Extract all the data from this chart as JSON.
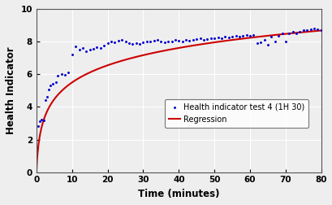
{
  "title": "",
  "xlabel": "Time (minutes)",
  "ylabel": "Health Indicator",
  "xlim": [
    0,
    80
  ],
  "ylim": [
    0,
    10
  ],
  "xticks": [
    0,
    10,
    20,
    30,
    40,
    50,
    60,
    70,
    80
  ],
  "yticks": [
    0,
    2,
    4,
    6,
    8,
    10
  ],
  "scatter_color": "#0000cc",
  "line_color": "#cc0000",
  "legend_labels": [
    "Health indicator test 4 (1H 30)",
    "Regression"
  ],
  "reg_a": 1.55,
  "reg_b": 1.88,
  "reg_c": 0.3,
  "background_color": "#eeeeee",
  "grid_color": "#ffffff",
  "scatter_points": [
    [
      0.5,
      2.8
    ],
    [
      1.0,
      3.1
    ],
    [
      1.5,
      3.2
    ],
    [
      2.0,
      3.15
    ],
    [
      2.5,
      4.4
    ],
    [
      3.0,
      4.6
    ],
    [
      3.5,
      5.05
    ],
    [
      4.0,
      5.3
    ],
    [
      4.5,
      5.4
    ],
    [
      5.5,
      5.5
    ],
    [
      6.0,
      5.9
    ],
    [
      7.0,
      6.0
    ],
    [
      8.0,
      5.95
    ],
    [
      9.0,
      6.1
    ],
    [
      10.0,
      7.2
    ],
    [
      11.0,
      7.7
    ],
    [
      12.0,
      7.5
    ],
    [
      13.0,
      7.6
    ],
    [
      14.0,
      7.4
    ],
    [
      15.0,
      7.5
    ],
    [
      16.0,
      7.55
    ],
    [
      17.0,
      7.65
    ],
    [
      18.0,
      7.6
    ],
    [
      19.0,
      7.75
    ],
    [
      20.0,
      7.9
    ],
    [
      21.0,
      8.0
    ],
    [
      22.0,
      7.95
    ],
    [
      23.0,
      8.05
    ],
    [
      24.0,
      8.1
    ],
    [
      25.0,
      8.0
    ],
    [
      26.0,
      7.9
    ],
    [
      27.0,
      7.85
    ],
    [
      28.0,
      7.9
    ],
    [
      29.0,
      7.85
    ],
    [
      30.0,
      7.95
    ],
    [
      31.0,
      8.0
    ],
    [
      32.0,
      8.0
    ],
    [
      33.0,
      8.05
    ],
    [
      34.0,
      8.1
    ],
    [
      35.0,
      8.0
    ],
    [
      36.0,
      7.95
    ],
    [
      37.0,
      8.0
    ],
    [
      38.0,
      8.0
    ],
    [
      39.0,
      8.1
    ],
    [
      40.0,
      8.05
    ],
    [
      41.0,
      8.0
    ],
    [
      42.0,
      8.1
    ],
    [
      43.0,
      8.05
    ],
    [
      44.0,
      8.1
    ],
    [
      45.0,
      8.15
    ],
    [
      46.0,
      8.2
    ],
    [
      47.0,
      8.1
    ],
    [
      48.0,
      8.15
    ],
    [
      49.0,
      8.2
    ],
    [
      50.0,
      8.2
    ],
    [
      51.0,
      8.25
    ],
    [
      52.0,
      8.2
    ],
    [
      53.0,
      8.3
    ],
    [
      54.0,
      8.25
    ],
    [
      55.0,
      8.3
    ],
    [
      56.0,
      8.35
    ],
    [
      57.0,
      8.3
    ],
    [
      58.0,
      8.35
    ],
    [
      59.0,
      8.4
    ],
    [
      60.0,
      8.35
    ],
    [
      61.0,
      8.4
    ],
    [
      62.0,
      7.9
    ],
    [
      63.0,
      7.95
    ],
    [
      64.0,
      8.1
    ],
    [
      65.0,
      7.8
    ],
    [
      66.0,
      8.3
    ],
    [
      67.0,
      8.0
    ],
    [
      68.0,
      8.35
    ],
    [
      69.0,
      8.5
    ],
    [
      70.0,
      8.0
    ],
    [
      71.0,
      8.5
    ],
    [
      72.0,
      8.6
    ],
    [
      73.0,
      8.5
    ],
    [
      74.0,
      8.6
    ],
    [
      75.0,
      8.7
    ],
    [
      76.0,
      8.7
    ],
    [
      77.0,
      8.75
    ],
    [
      78.0,
      8.8
    ],
    [
      79.0,
      8.75
    ],
    [
      80.0,
      8.7
    ]
  ]
}
